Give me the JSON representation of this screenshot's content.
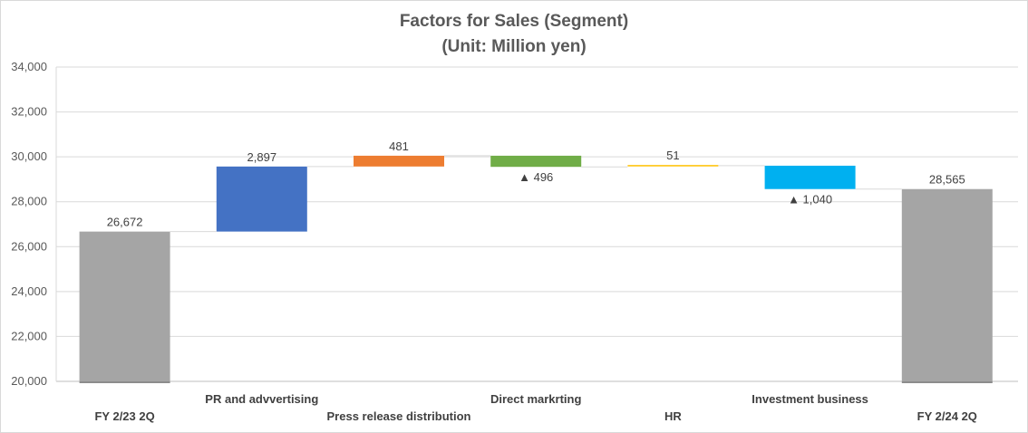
{
  "chart_data": {
    "type": "waterfall",
    "title": "Factors for Sales (Segment)",
    "subtitle": "(Unit: Million yen)",
    "xlabel": "",
    "ylabel": "",
    "ylim": [
      20000,
      34000
    ],
    "yticks": [
      20000,
      22000,
      24000,
      26000,
      28000,
      30000,
      32000,
      34000
    ],
    "ytick_labels": [
      "20,000",
      "22,000",
      "24,000",
      "26,000",
      "28,000",
      "30,000",
      "32,000",
      "34,000"
    ],
    "grid": true,
    "legend": "none",
    "categories": [
      "FY 2/23 2Q",
      "PR and advvertising",
      "Press release distribution",
      "Direct markrting",
      "HR",
      "Investment business",
      "FY 2/24 2Q"
    ],
    "bars": [
      {
        "category": "FY 2/23 2Q",
        "kind": "total",
        "value": 26672,
        "label": "26,672",
        "color": "#a5a5a5"
      },
      {
        "category": "PR and advvertising",
        "kind": "delta",
        "value": 2897,
        "label": "2,897",
        "color": "#4472c4"
      },
      {
        "category": "Press release distribution",
        "kind": "delta",
        "value": 481,
        "label": "481",
        "color": "#ed7d31"
      },
      {
        "category": "Direct markrting",
        "kind": "delta",
        "value": -496,
        "label": "▲ 496",
        "color": "#70ad47"
      },
      {
        "category": "HR",
        "kind": "delta",
        "value": 51,
        "label": "51",
        "color": "#ffc000"
      },
      {
        "category": "Investment business",
        "kind": "delta",
        "value": -1040,
        "label": "▲ 1,040",
        "color": "#00b0f0"
      },
      {
        "category": "FY 2/24 2Q",
        "kind": "total",
        "value": 28565,
        "label": "28,565",
        "color": "#a5a5a5"
      }
    ]
  }
}
